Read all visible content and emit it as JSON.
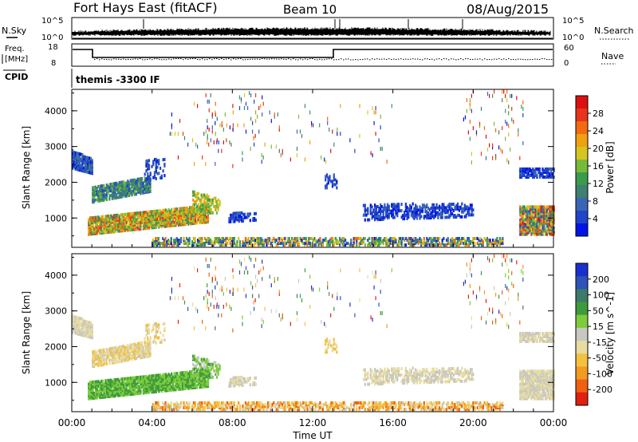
{
  "header": {
    "title": "Fort Hays East (fitACF)",
    "beam": "Beam 10",
    "date": "08/Aug/2015"
  },
  "top_panels": {
    "nsky_label": "N.Sky",
    "nsearch_label": "N.Search",
    "count_top_tick": "10^5",
    "count_bottom_tick": "10^0",
    "freq_label_line1": "Freq.",
    "freq_label_line2": "[MHz]",
    "freq_ticks": [
      "18",
      "8"
    ],
    "nave_label": "Nave",
    "nave_ticks": [
      "60",
      "0"
    ],
    "cpid_label": "CPID",
    "cpid_value": "themis -3300 IF"
  },
  "chart_data": [
    {
      "type": "heatmap",
      "name": "power",
      "xlabel": "Time UT",
      "ylabel": "Slant Range [km]",
      "x_ticks": [
        "00:00",
        "04:00",
        "08:00",
        "12:00",
        "16:00",
        "20:00",
        "00:00"
      ],
      "x_range_hours": [
        0,
        24
      ],
      "y_ticks": [
        1000,
        2000,
        3000,
        4000
      ],
      "ylim": [
        180,
        4600
      ],
      "colorbar": {
        "label": "Power [dB]",
        "ticks": [
          "4",
          "8",
          "12",
          "16",
          "20",
          "24",
          "28"
        ],
        "colors": [
          "#0015e6",
          "#2144c8",
          "#3a66b4",
          "#3f7f74",
          "#3b9b4d",
          "#78b93a",
          "#d4c520",
          "#f0a010",
          "#f36a10",
          "#e8341a",
          "#dd1010"
        ]
      }
    },
    {
      "type": "heatmap",
      "name": "velocity",
      "xlabel": "Time UT",
      "ylabel": "Slant Range [km]",
      "x_ticks": [
        "00:00",
        "04:00",
        "08:00",
        "12:00",
        "16:00",
        "20:00",
        "00:00"
      ],
      "x_range_hours": [
        0,
        24
      ],
      "y_ticks": [
        1000,
        2000,
        3000,
        4000
      ],
      "ylim": [
        180,
        4600
      ],
      "colorbar": {
        "label": "Velocity [m s^-1]",
        "ticks": [
          "200",
          "100",
          "50",
          "15",
          "-15",
          "-50",
          "-100",
          "-200"
        ],
        "colors": [
          "#1a2fd0",
          "#2e54b8",
          "#3d7a6a",
          "#3f9a3c",
          "#7ccc3c",
          "#c8c8c0",
          "#e8dca0",
          "#f4c040",
          "#f39a20",
          "#f06010",
          "#e02010"
        ]
      }
    }
  ]
}
